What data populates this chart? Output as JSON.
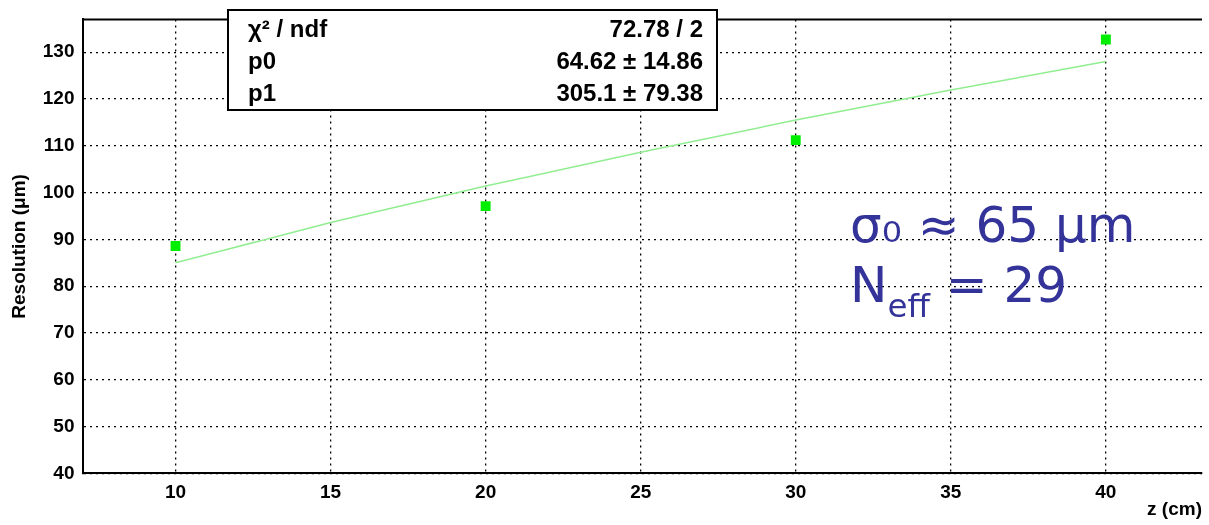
{
  "chart_data": {
    "type": "scatter",
    "xlabel": "z (cm)",
    "ylabel": "Resolution (μm)",
    "xlim": [
      7,
      43.1
    ],
    "xticks": [
      10,
      15,
      20,
      25,
      30,
      35,
      40
    ],
    "ylim": [
      40,
      137
    ],
    "yticks": [
      40,
      50,
      60,
      70,
      80,
      90,
      100,
      110,
      120,
      130
    ],
    "grid": true,
    "marker": "square",
    "series": [
      {
        "color": "#00ee00",
        "x": [
          10,
          20,
          30,
          40
        ],
        "values": [
          88.6,
          97.1,
          111.2,
          132.7
        ]
      },
      {
        "type": "line",
        "color": "#90ee90",
        "marker": "none",
        "x": [
          10,
          15,
          20,
          25,
          30,
          35,
          40
        ],
        "values": [
          85.0,
          93.6,
          101.4,
          108.6,
          115.5,
          121.9,
          128.0
        ]
      }
    ],
    "annotations": [
      "χ² / ndf",
      "72.78 / 2",
      "p0",
      "64.62 ± 14.86",
      "p1",
      "305.1 ± 79.38",
      "σ₀ ≈ 65 μm",
      "N$_{eff}$ = 29"
    ]
  }
}
